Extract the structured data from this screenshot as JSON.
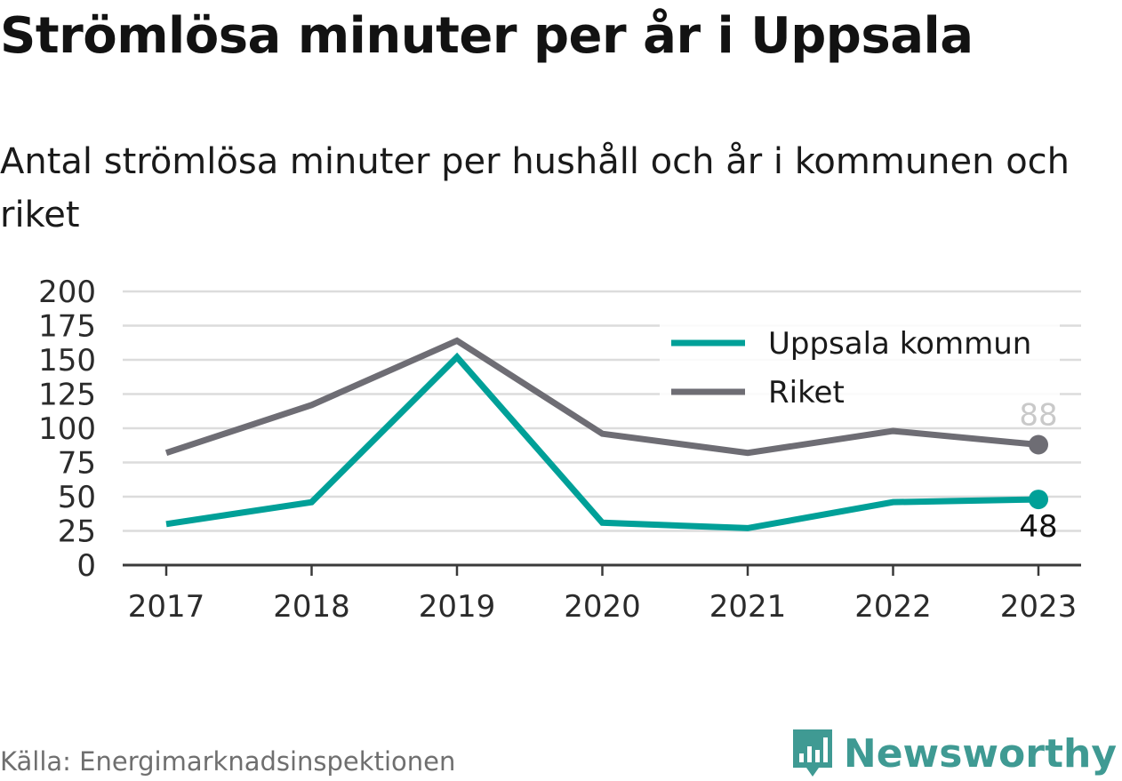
{
  "header": {
    "title": "Strömlösa minuter per år i Uppsala",
    "subtitle": "Antal strömlösa minuter per hushåll och år i kommunen och riket"
  },
  "footer": {
    "source": "Källa: Energimarknadsinspektionen",
    "brand": "Newsworthy",
    "brand_icon": "bar-chart-logo-icon",
    "brand_color": "#3f9a93"
  },
  "chart_data": {
    "type": "line",
    "x": [
      "2017",
      "2018",
      "2019",
      "2020",
      "2021",
      "2022",
      "2023"
    ],
    "ylim": [
      0,
      200
    ],
    "yticks": [
      0,
      25,
      50,
      75,
      100,
      125,
      150,
      175,
      200
    ],
    "grid": true,
    "legend_position": "top-right",
    "series": [
      {
        "name": "Uppsala kommun",
        "color": "#00a098",
        "values": [
          30,
          46,
          152,
          31,
          27,
          46,
          48
        ],
        "end_label": "48"
      },
      {
        "name": "Riket",
        "color": "#6e6d74",
        "values": [
          82,
          117,
          164,
          96,
          82,
          98,
          88
        ],
        "end_label": "88"
      }
    ]
  }
}
